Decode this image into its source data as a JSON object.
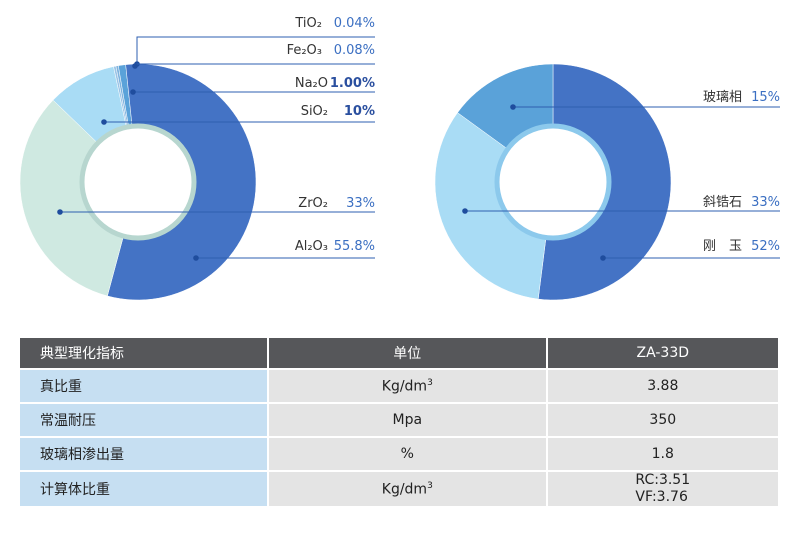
{
  "chart_data": [
    {
      "type": "pie",
      "variant": "donut",
      "slices": [
        {
          "label": "Al2O3",
          "display": "Al₂O₃",
          "value": 55.8,
          "value_text": "55.8%",
          "color": "#4473c5",
          "bold": false
        },
        {
          "label": "ZrO2",
          "display": "ZrO₂",
          "value": 33,
          "value_text": "33%",
          "color": "#cfe9e1",
          "bold": false
        },
        {
          "label": "SiO2",
          "display": "SiO₂",
          "value": 10,
          "value_text": "10%",
          "color": "#a9dcf5",
          "bold": true
        },
        {
          "label": "Na2O",
          "display": "Na₂O",
          "value": 1.0,
          "value_text": "1.00%",
          "color": "#5aa2d9",
          "bold": true
        },
        {
          "label": "Fe2O3",
          "display": "Fe₂O₃",
          "value": 0.08,
          "value_text": "0.08%",
          "color": "#7fb3de",
          "bold": false
        },
        {
          "label": "TiO2",
          "display": "TiO₂",
          "value": 0.04,
          "value_text": "0.04%",
          "color": "#9cc4e6",
          "bold": false
        }
      ],
      "inner_ring_color": "#b7d6cf"
    },
    {
      "type": "pie",
      "variant": "donut",
      "slices": [
        {
          "label": "刚 玉",
          "display": "刚　玉",
          "value": 52,
          "value_text": "52%",
          "color": "#4473c5",
          "bold": false
        },
        {
          "label": "斜锆石",
          "display": "斜锆石",
          "value": 33,
          "value_text": "33%",
          "color": "#a9dcf5",
          "bold": false
        },
        {
          "label": "玻璃相",
          "display": "玻璃相",
          "value": 15,
          "value_text": "15%",
          "color": "#5aa2d9",
          "bold": false
        }
      ],
      "inner_ring_color": "#8cc9ec"
    },
    {
      "type": "table",
      "columns": [
        "典型理化指标",
        "单位",
        "ZA-33D"
      ],
      "rows": [
        [
          "真比重",
          "Kg/dm3",
          "3.88"
        ],
        [
          "常温耐压",
          "Mpa",
          "350"
        ],
        [
          "玻璃相渗出量",
          "%",
          "1.8"
        ],
        [
          "计算体比重",
          "Kg/dm3",
          "RC:3.51 VF:3.76"
        ]
      ]
    }
  ],
  "table": {
    "headers": [
      "典型理化指标",
      "单位",
      "ZA-33D"
    ],
    "rows": [
      {
        "name": "真比重",
        "unit_base": "Kg/dm",
        "unit_sup": "3",
        "value": "3.88"
      },
      {
        "name": "常温耐压",
        "unit_base": "Mpa",
        "unit_sup": "",
        "value": "350"
      },
      {
        "name": "玻璃相渗出量",
        "unit_base": "%",
        "unit_sup": "",
        "value": "1.8"
      },
      {
        "name": "计算体比重",
        "unit_base": "Kg/dm",
        "unit_sup": "3",
        "value": "RC:3.51",
        "value2": "VF:3.76"
      }
    ]
  }
}
